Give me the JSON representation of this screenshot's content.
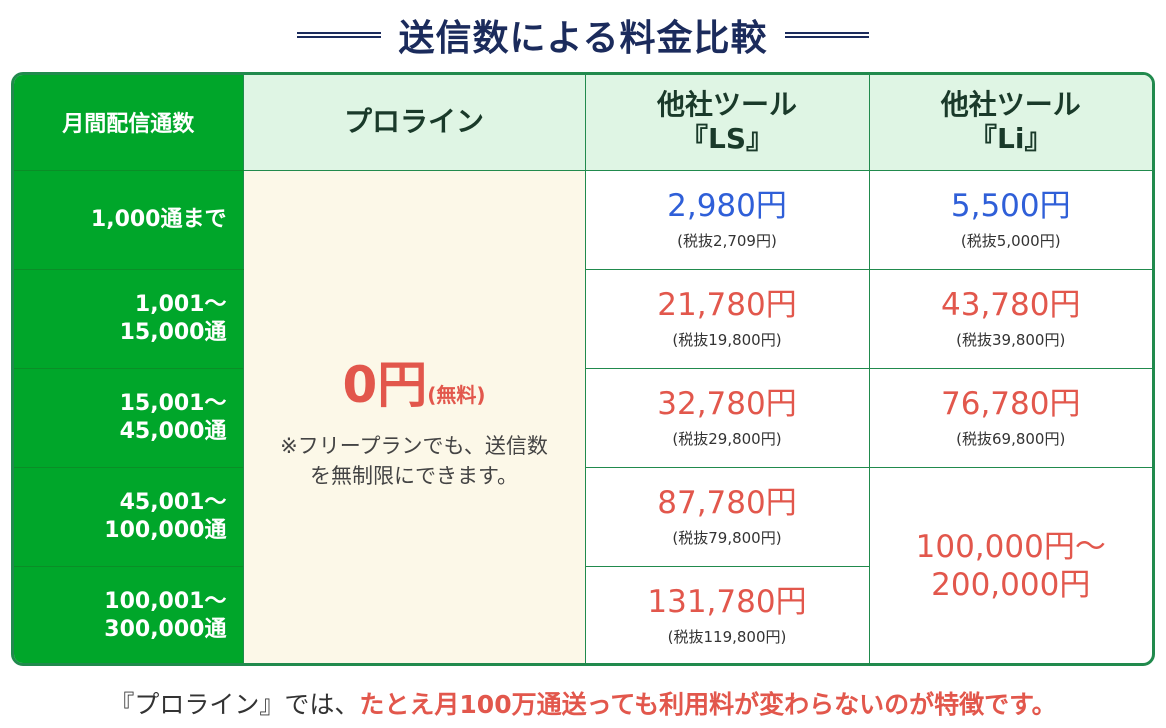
{
  "title": "送信数による料金比較",
  "table": {
    "corner_label": "月間配信通数",
    "columns": [
      {
        "line1": "プロライン",
        "line2": ""
      },
      {
        "line1": "他社ツール",
        "line2": "『LS』"
      },
      {
        "line1": "他社ツール",
        "line2": "『Li』"
      }
    ],
    "rows": [
      {
        "line1": "1,000通まで",
        "line2": ""
      },
      {
        "line1": "1,001～",
        "line2": "15,000通"
      },
      {
        "line1": "15,001～",
        "line2": "45,000通"
      },
      {
        "line1": "45,001～",
        "line2": "100,000通"
      },
      {
        "line1": "100,001～",
        "line2": "300,000通"
      }
    ],
    "proline": {
      "price": "0円",
      "price_suffix": "(無料)",
      "note": "※フリープランでも、送信数を無制限にできます。"
    },
    "ls": [
      {
        "price": "2,980円",
        "tax": "(税抜2,709円)",
        "color": "#2f5fd8"
      },
      {
        "price": "21,780円",
        "tax": "(税抜19,800円)",
        "color": "#e2574c"
      },
      {
        "price": "32,780円",
        "tax": "(税抜29,800円)",
        "color": "#e2574c"
      },
      {
        "price": "87,780円",
        "tax": "(税抜79,800円)",
        "color": "#e2574c"
      },
      {
        "price": "131,780円",
        "tax": "(税抜119,800円)",
        "color": "#e2574c"
      }
    ],
    "li": [
      {
        "price": "5,500円",
        "tax": "(税抜5,000円)",
        "color": "#2f5fd8"
      },
      {
        "price": "43,780円",
        "tax": "(税抜39,800円)",
        "color": "#e2574c"
      },
      {
        "price": "76,780円",
        "tax": "(税抜69,800円)",
        "color": "#e2574c"
      }
    ],
    "li_merged": {
      "line1": "100,000円～",
      "line2": "200,000円"
    }
  },
  "footer": {
    "prefix": "『プロライン』では、",
    "emphasis": "たとえ月100万通送っても利用料が変わらないのが特徴です。"
  },
  "colors": {
    "header_green": "#00a62a",
    "border_green": "#218a4d",
    "header_light": "#dff5e4",
    "proline_bg": "#fcf8e8",
    "blue_price": "#2f5fd8",
    "red_price": "#e2574c",
    "title_navy": "#1b2b5c"
  }
}
